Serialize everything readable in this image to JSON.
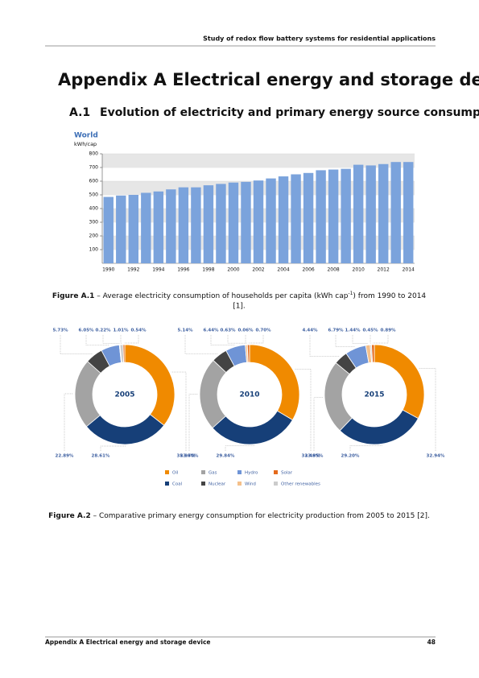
{
  "header": "Study of redox flow battery systems for residential applications",
  "heading": "Appendix A Electrical energy and storage devices",
  "section": {
    "number": "A.1",
    "title": "Evolution of electricity and primary energy source consumption"
  },
  "chart_data": [
    {
      "type": "bar",
      "title": "World",
      "y_label": "kWh/cap",
      "color": "#7ba3dc",
      "grid": true,
      "categories": [
        "1990",
        null,
        "1992",
        null,
        "1994",
        null,
        "1996",
        null,
        "1998",
        null,
        "2000",
        null,
        "2002",
        null,
        "2004",
        null,
        "2006",
        null,
        "2008",
        null,
        "2010",
        null,
        "2012",
        null,
        "2014"
      ],
      "values": [
        485,
        495,
        500,
        515,
        525,
        540,
        555,
        555,
        570,
        580,
        590,
        595,
        605,
        620,
        635,
        650,
        660,
        680,
        685,
        690,
        720,
        715,
        725,
        740,
        740
      ],
      "ylim": [
        0,
        800
      ],
      "yticks": [
        100,
        200,
        300,
        400,
        500,
        600,
        700,
        800
      ]
    },
    {
      "type": "pie",
      "donut": true,
      "categories": [
        "Oil",
        "Gas",
        "Hydro",
        "Solar",
        "Coal",
        "Nuclear",
        "Wind",
        "Other renewables"
      ],
      "colors": [
        "#f08a00",
        "#a3a3a3",
        "#6f94d6",
        "#e46a1c",
        "#163f78",
        "#444444",
        "#f5c08a",
        "#cccccc"
      ],
      "series": [
        {
          "name": "2005",
          "values": [
            35.96,
            22.89,
            6.05,
            0.54,
            28.61,
            5.73,
            0.22,
            1.01
          ],
          "value_labels": [
            "35.96%",
            "22.89%",
            "6.05%",
            "0.54%",
            "28.61%",
            "5.73%",
            "0.22%",
            "1.01%"
          ]
        },
        {
          "name": "2010",
          "values": [
            33.49,
            23.7,
            6.44,
            0.7,
            29.84,
            5.14,
            0.63,
            0.06
          ],
          "value_labels": [
            "33.49%",
            "23.70%",
            "6.44%",
            "0.70%",
            "29.84%",
            "5.14%",
            "0.63%",
            "0.06%"
          ]
        },
        {
          "name": "2015",
          "values": [
            32.94,
            23.85,
            6.79,
            0.89,
            29.2,
            4.44,
            1.44,
            0.45
          ],
          "value_labels": [
            "32.94%",
            "23.85%",
            "6.79%",
            "0.89%",
            "29.20%",
            "4.44%",
            "1.44%",
            "0.45%"
          ]
        }
      ]
    }
  ],
  "captions": [
    {
      "label": "Figure A.1",
      "text": " – Average electricity consumption of households per capita (kWh cap",
      "sup": "-1",
      "text2": ") from 1990 to 2014",
      "text3": "[1]."
    },
    {
      "label": "Figure A.2",
      "text": " – Comparative primary energy consumption for electricity production from 2005 to 2015 [2]."
    }
  ],
  "footer": {
    "left": "Appendix A Electrical energy and storage device",
    "page": "48"
  }
}
